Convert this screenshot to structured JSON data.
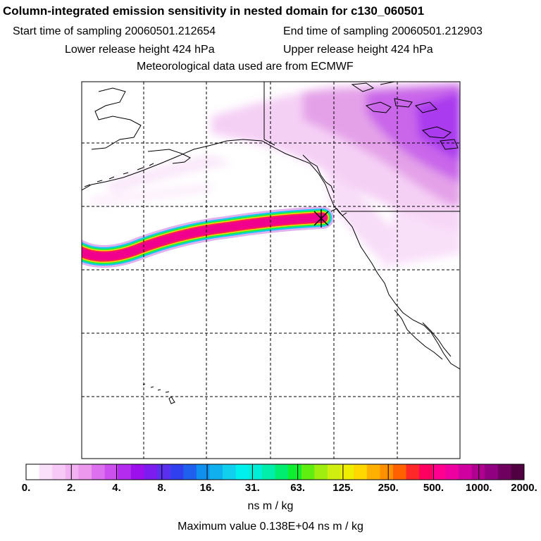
{
  "title": "Column-integrated emission sensitivity in nested domain for c130_060501",
  "header": {
    "start_time": "Start time of sampling 20060501.212654",
    "end_time": "End time of sampling 20060501.212903",
    "lower_height": "Lower release height  424 hPa",
    "upper_height": "Upper release height  424 hPa",
    "met_data": "Meteorological data used are from ECMWF"
  },
  "colorbar": {
    "colors": [
      "#ffffff",
      "#fbe0fb",
      "#f7c9f7",
      "#f2b2f2",
      "#ec98ec",
      "#dd70ee",
      "#cc50ee",
      "#b42cee",
      "#9c10ee",
      "#7c1cee",
      "#5a30ee",
      "#3040ee",
      "#2060ee",
      "#1090ee",
      "#10b0ee",
      "#10d0ee",
      "#00f0ee",
      "#00eed8",
      "#00eeaa",
      "#00ee70",
      "#10ee30",
      "#60ee10",
      "#a0ee10",
      "#d0ee10",
      "#f0ee00",
      "#ffd800",
      "#ffb000",
      "#ff9000",
      "#ff6000",
      "#ff2828",
      "#ff0060",
      "#ff0090",
      "#ee00a0",
      "#d000a0",
      "#b00090",
      "#900080",
      "#700060",
      "#500040"
    ],
    "labels": [
      "0.",
      "2.",
      "4.",
      "8.",
      "16.",
      "31.",
      "63.",
      "125.",
      "250.",
      "500.",
      "1000.",
      "2000."
    ],
    "units": "ns m / kg"
  },
  "max_value": "Maximum value  0.138E+04 ns m / kg"
}
